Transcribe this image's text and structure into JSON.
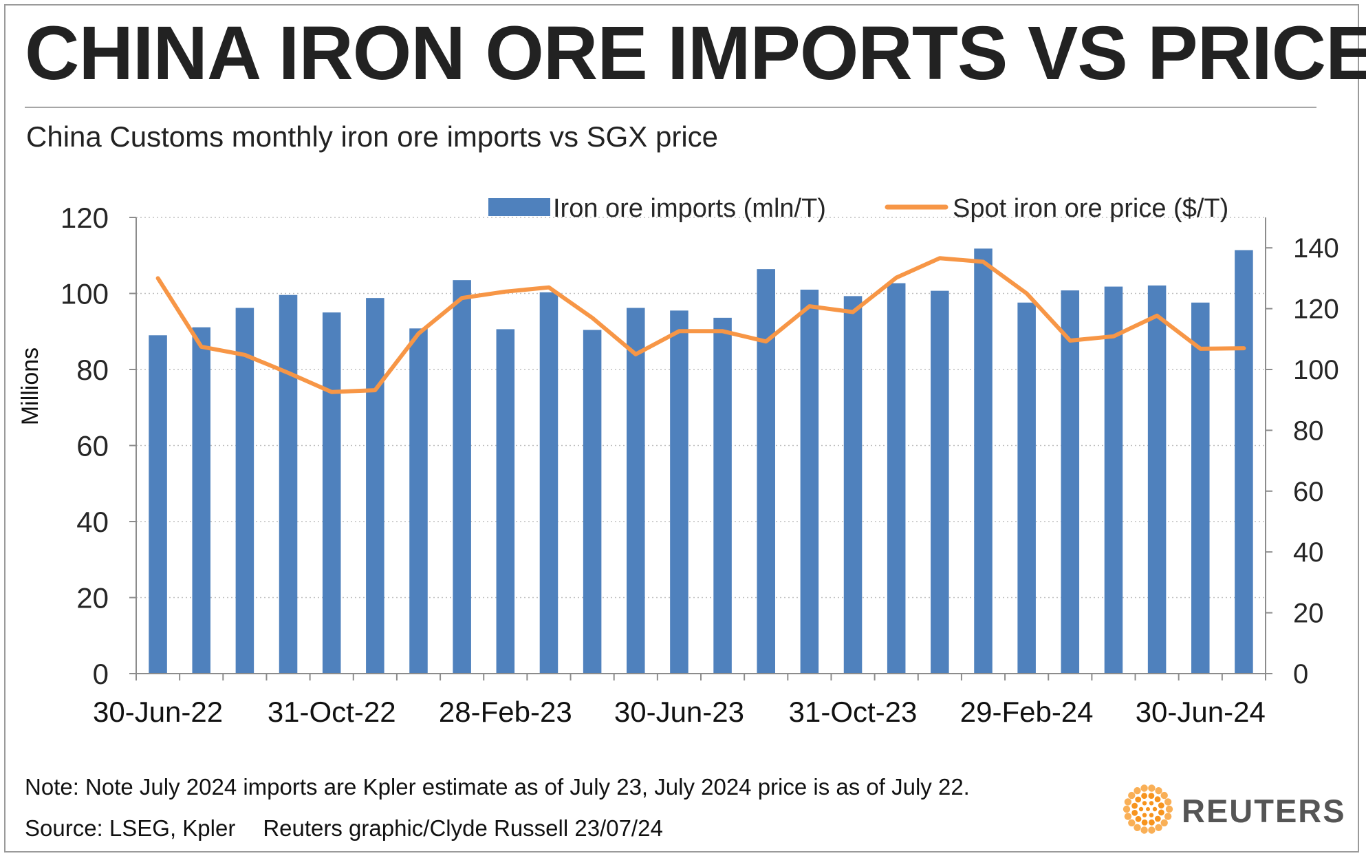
{
  "header": {
    "title": "CHINA IRON ORE IMPORTS VS PRICE",
    "subtitle": "China Customs monthly iron ore imports vs SGX price"
  },
  "footer": {
    "note": "Note: Note July 2024 imports are Kpler estimate as of July 23, July 2024 price is as of July 22.",
    "source": "Source: LSEG, Kpler",
    "credit": "Reuters graphic/Clyde Russell 23/07/24"
  },
  "logo": {
    "text": "REUTERS",
    "icon": "reuters-dot-logo-icon",
    "color": "#f7941e"
  },
  "chart_data": {
    "type": "bar",
    "title": "",
    "x": [
      "30-Jun-22",
      "31-Jul-22",
      "31-Aug-22",
      "30-Sep-22",
      "31-Oct-22",
      "30-Nov-22",
      "31-Dec-22",
      "31-Jan-23",
      "28-Feb-23",
      "31-Mar-23",
      "30-Apr-23",
      "31-May-23",
      "30-Jun-23",
      "31-Jul-23",
      "31-Aug-23",
      "30-Sep-23",
      "31-Oct-23",
      "30-Nov-23",
      "31-Dec-23",
      "31-Jan-24",
      "29-Feb-24",
      "31-Mar-24",
      "30-Apr-24",
      "31-May-24",
      "30-Jun-24",
      "31-Jul-24"
    ],
    "x_tick_labels": [
      "30-Jun-22",
      "31-Oct-22",
      "28-Feb-23",
      "30-Jun-23",
      "31-Oct-23",
      "29-Feb-24",
      "30-Jun-24"
    ],
    "ylabel": "Millions",
    "ylim": [
      0,
      120
    ],
    "yticks": [
      0,
      20,
      40,
      60,
      80,
      100,
      120
    ],
    "y2lim": [
      0,
      150
    ],
    "y2ticks": [
      0,
      20,
      40,
      60,
      80,
      100,
      120,
      140
    ],
    "grid": "horizontal-dotted",
    "legend_position": "top",
    "series": [
      {
        "name": "Iron ore imports (mln/T)",
        "kind": "bar",
        "axis": "left",
        "color": "#4f81bd",
        "values": [
          89.0,
          91.1,
          96.2,
          99.6,
          95.0,
          98.8,
          90.8,
          103.5,
          90.6,
          100.3,
          90.4,
          96.2,
          95.5,
          93.6,
          106.4,
          101.0,
          99.3,
          102.7,
          100.7,
          111.8,
          97.6,
          100.8,
          101.8,
          102.1,
          97.6,
          111.4
        ]
      },
      {
        "name": "Spot iron ore price ($/T)",
        "kind": "line",
        "axis": "right",
        "color": "#f79646",
        "values": [
          130.0,
          107.5,
          104.8,
          98.9,
          92.6,
          93.2,
          111.8,
          123.5,
          125.6,
          127.0,
          117.0,
          105.0,
          112.6,
          112.6,
          109.2,
          120.8,
          118.9,
          130.2,
          136.6,
          135.4,
          125.0,
          109.5,
          110.9,
          117.7,
          106.8,
          107.0
        ]
      }
    ]
  }
}
